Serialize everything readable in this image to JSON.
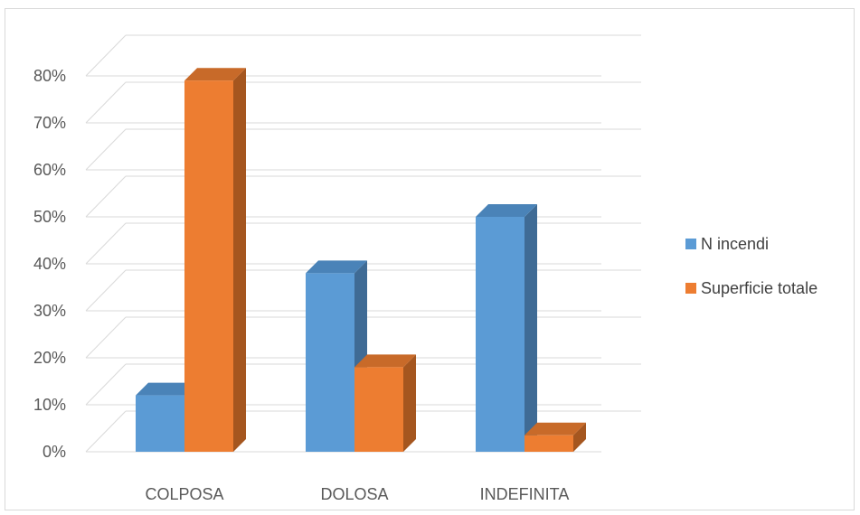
{
  "chart_data": {
    "type": "bar",
    "title": "",
    "xlabel": "",
    "ylabel": "",
    "categories": [
      "COLPOSA",
      "DOLOSA",
      "INDEFINITA"
    ],
    "series": [
      {
        "name": "N incendi",
        "values": [
          12,
          38,
          50
        ],
        "color": "#5b9bd5",
        "side_color": "#3f6b95",
        "top_color": "#4a83b8"
      },
      {
        "name": "Superficie totale",
        "values": [
          79,
          18,
          3.5
        ],
        "color": "#ed7d31",
        "side_color": "#a5561f",
        "top_color": "#c86a29"
      }
    ],
    "ylim": [
      0,
      80
    ],
    "yticks": [
      "0%",
      "10%",
      "20%",
      "30%",
      "40%",
      "50%",
      "60%",
      "70%",
      "80%"
    ],
    "grid": true,
    "legend_position": "right",
    "style": "3d-clustered-column"
  }
}
